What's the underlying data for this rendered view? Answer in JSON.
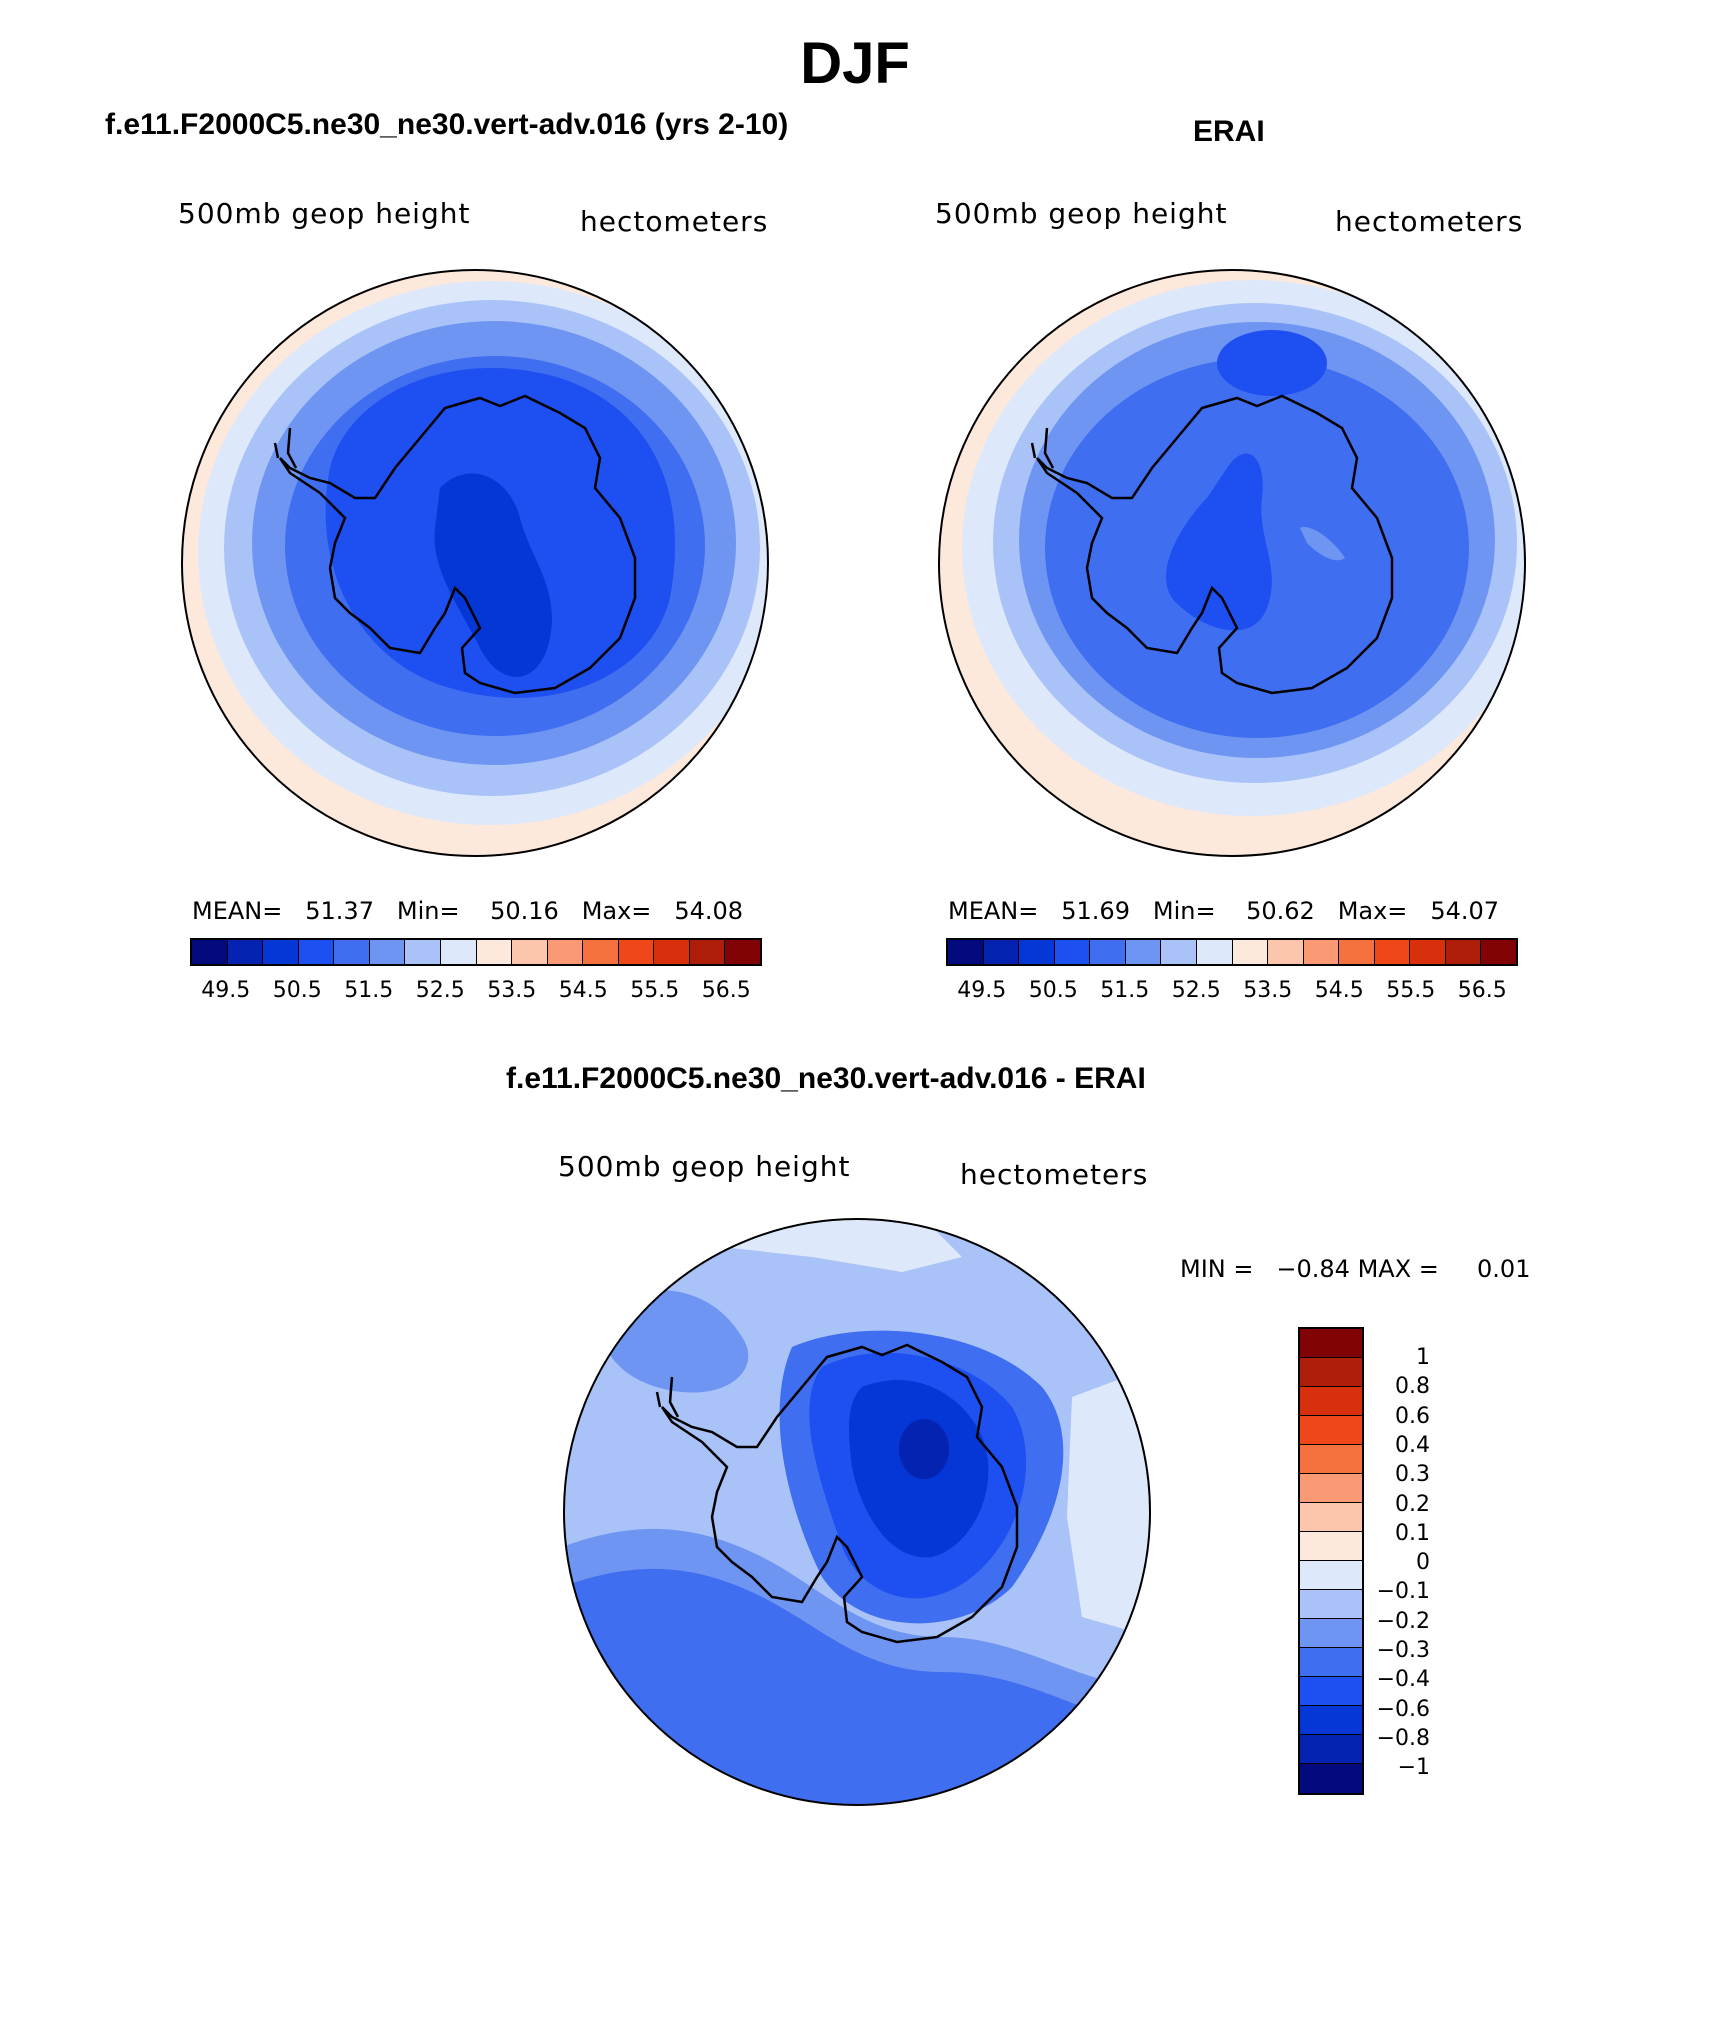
{
  "title": "DJF",
  "panels": {
    "left": {
      "title": "f.e11.F2000C5.ne30_ne30.vert-adv.016 (yrs 2-10)",
      "field": "500mb geop height",
      "units": "hectometers",
      "mean_label": "MEAN=",
      "mean": "51.37",
      "min_label": "Min=",
      "min": "50.16",
      "max_label": "Max=",
      "max": "54.08"
    },
    "right": {
      "title": "ERAI",
      "field": "500mb geop height",
      "units": "hectometers",
      "mean_label": "MEAN=",
      "mean": "51.69",
      "min_label": "Min=",
      "min": "50.62",
      "max_label": "Max=",
      "max": "54.07"
    },
    "diff": {
      "title": "f.e11.F2000C5.ne30_ne30.vert-adv.016 - ERAI",
      "field": "500mb geop height",
      "units": "hectometers",
      "min_label": "MIN =",
      "min": "−0.84",
      "max_label": "MAX =",
      "max": "0.01"
    }
  },
  "colorbar_main": {
    "colors": [
      "#030a7e",
      "#0323b0",
      "#0536d6",
      "#1e4ff0",
      "#3f6ef0",
      "#6f95f3",
      "#a9c2f7",
      "#dde8fb",
      "#fde8dc",
      "#fcc6ac",
      "#f99a74",
      "#f5723e",
      "#f0471a",
      "#d8300c",
      "#ad1d08",
      "#800204"
    ],
    "ticks": [
      "49.5",
      "50.5",
      "51.5",
      "52.5",
      "53.5",
      "54.5",
      "55.5",
      "56.5"
    ]
  },
  "colorbar_diff": {
    "colors": [
      "#800204",
      "#ad1d08",
      "#d8300c",
      "#f0471a",
      "#f5723e",
      "#f99a74",
      "#fcc6ac",
      "#fde8dc",
      "#dde8fb",
      "#a9c2f7",
      "#6f95f3",
      "#3f6ef0",
      "#1e4ff0",
      "#0536d6",
      "#0323b0",
      "#030a7e"
    ],
    "ticks": [
      "1",
      "0.8",
      "0.6",
      "0.4",
      "0.3",
      "0.2",
      "0.1",
      "0",
      "−0.1",
      "−0.2",
      "−0.3",
      "−0.4",
      "−0.6",
      "−0.8",
      "−1"
    ]
  }
}
